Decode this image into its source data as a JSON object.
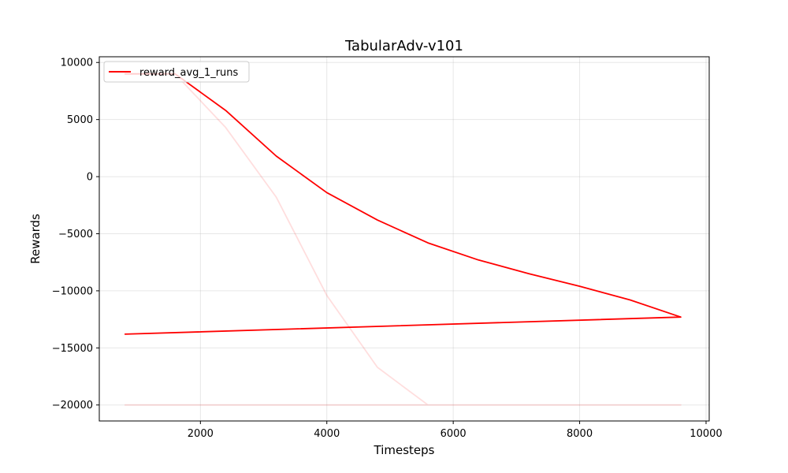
{
  "chart_data": {
    "type": "line",
    "title": "TabularAdv-v101",
    "xlabel": "Timesteps",
    "ylabel": "Rewards",
    "xlim": [
      400,
      10050
    ],
    "ylim": [
      -21400,
      10500
    ],
    "xticks": [
      2000,
      4000,
      6000,
      8000,
      10000
    ],
    "yticks": [
      10000,
      5000,
      0,
      -5000,
      -10000,
      -15000,
      -20000
    ],
    "xtick_labels": [
      "2000",
      "4000",
      "6000",
      "8000",
      "10000"
    ],
    "ytick_labels": [
      "10000",
      "5000",
      "0",
      "−5000",
      "−10000",
      "−15000",
      "−20000"
    ],
    "grid": true,
    "legend_position": "top-left",
    "series": [
      {
        "name": "reward_avg_1_runs",
        "color": "#ff0000",
        "opacity": 1.0,
        "x": [
          800,
          1600,
          2400,
          3200,
          4000,
          4800,
          5600,
          6400,
          7200,
          8000,
          8800,
          9600,
          800
        ],
        "y": [
          9000,
          9000,
          5800,
          1800,
          -1400,
          -3800,
          -5800,
          -7300,
          -8500,
          -9600,
          -10800,
          -12300,
          -13800
        ]
      },
      {
        "color": "#ff0000",
        "opacity": 0.13,
        "x": [
          800,
          1600,
          2400,
          3200,
          4000,
          4800,
          5600,
          6400,
          7200,
          8000,
          8800,
          9600,
          800
        ],
        "y": [
          9000,
          9000,
          4300,
          -1800,
          -10400,
          -16700,
          -20000,
          -20000,
          -20000,
          -20000,
          -20000,
          -20000,
          -20000
        ]
      }
    ]
  }
}
